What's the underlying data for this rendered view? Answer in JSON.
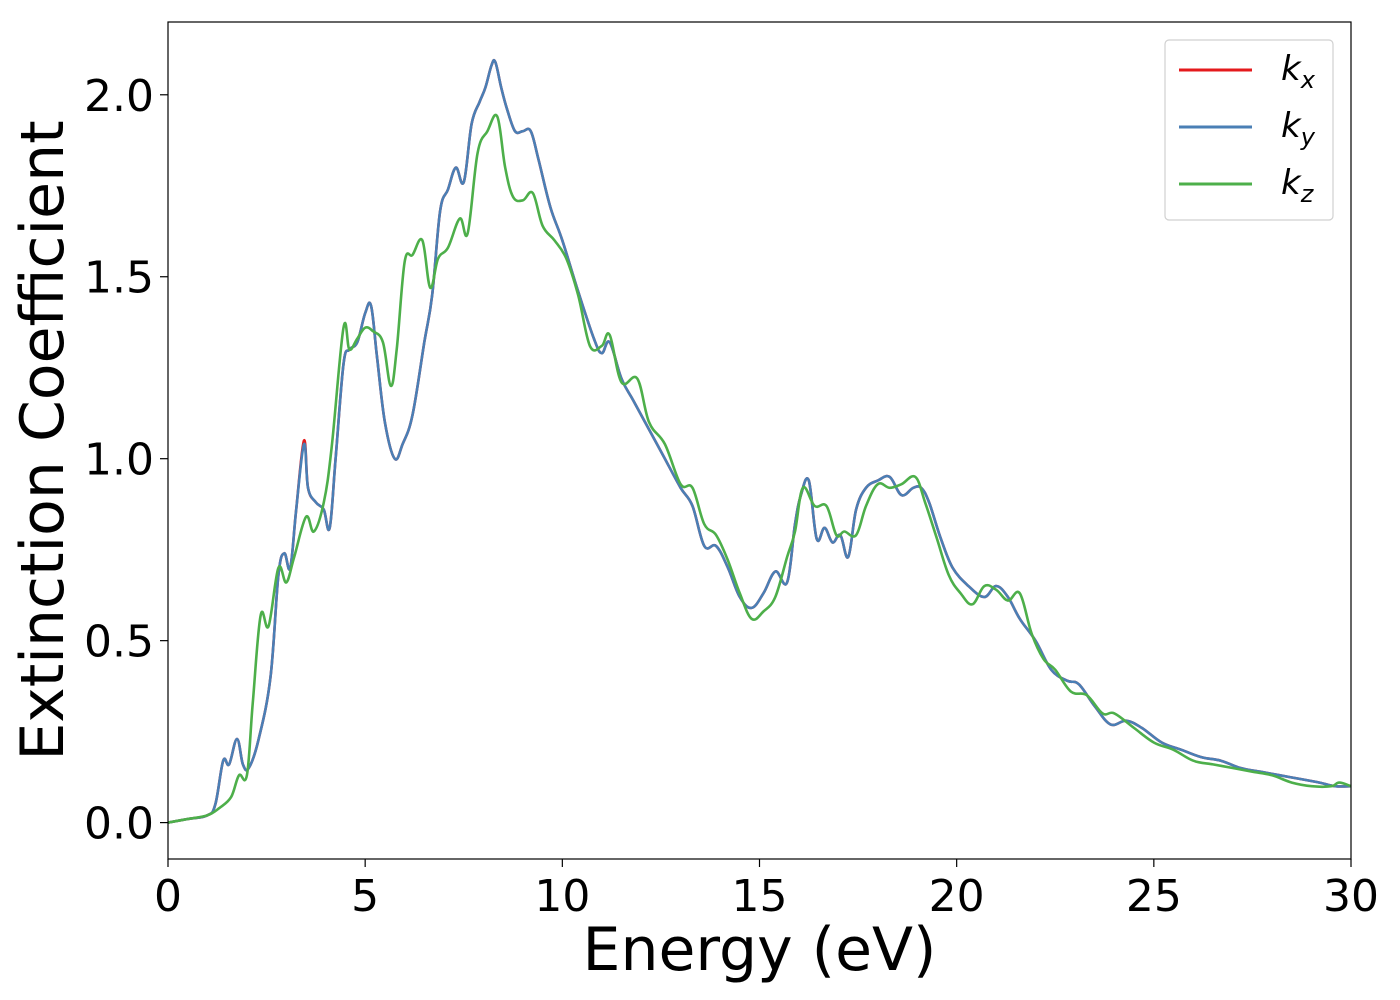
{
  "chart_data": {
    "type": "line",
    "xlabel": "Energy (eV)",
    "ylabel": "Extinction Coefficient",
    "xlim": [
      0,
      30
    ],
    "ylim": [
      -0.1,
      2.2
    ],
    "xticks": [
      "0",
      "5",
      "10",
      "15",
      "20",
      "25",
      "30"
    ],
    "xtick_values": [
      0,
      5,
      10,
      15,
      20,
      25,
      30
    ],
    "yticks": [
      "0.0",
      "0.5",
      "1.0",
      "1.5",
      "2.0"
    ],
    "ytick_values": [
      0.0,
      0.5,
      1.0,
      1.5,
      2.0
    ],
    "grid": false,
    "legend_position": "top-right",
    "series": [
      {
        "name": "k_x",
        "label_main": "k",
        "label_sub": "x",
        "color": "#e41a1c",
        "x": [
          0,
          0.5,
          1.0,
          1.2,
          1.4,
          1.55,
          1.75,
          1.9,
          2.05,
          2.3,
          2.6,
          2.8,
          2.95,
          3.1,
          3.25,
          3.45,
          3.55,
          3.75,
          3.95,
          4.1,
          4.25,
          4.45,
          4.6,
          4.8,
          5.0,
          5.15,
          5.3,
          5.5,
          5.75,
          5.95,
          6.2,
          6.5,
          6.7,
          6.9,
          7.1,
          7.3,
          7.5,
          7.7,
          7.9,
          8.05,
          8.2,
          8.3,
          8.45,
          8.6,
          8.8,
          9.0,
          9.2,
          9.4,
          9.7,
          10.0,
          10.4,
          10.8,
          11.0,
          11.2,
          11.5,
          11.8,
          12.2,
          12.6,
          13.0,
          13.3,
          13.6,
          13.9,
          14.2,
          14.5,
          14.8,
          15.1,
          15.4,
          15.7,
          15.9,
          16.05,
          16.25,
          16.45,
          16.65,
          16.85,
          17.05,
          17.25,
          17.45,
          17.7,
          18.0,
          18.3,
          18.6,
          18.9,
          19.1,
          19.3,
          19.6,
          19.9,
          20.3,
          20.7,
          21.0,
          21.3,
          21.6,
          22.0,
          22.4,
          22.8,
          23.1,
          23.5,
          23.9,
          24.3,
          24.7,
          25.2,
          25.7,
          26.2,
          26.7,
          27.2,
          27.7,
          28.2,
          28.7,
          29.2,
          29.6,
          30.0
        ],
        "y": [
          0.0,
          0.01,
          0.02,
          0.05,
          0.17,
          0.16,
          0.23,
          0.16,
          0.15,
          0.23,
          0.4,
          0.68,
          0.74,
          0.7,
          0.86,
          1.05,
          0.92,
          0.88,
          0.86,
          0.81,
          1.0,
          1.26,
          1.3,
          1.32,
          1.4,
          1.42,
          1.28,
          1.1,
          1.0,
          1.04,
          1.12,
          1.32,
          1.45,
          1.68,
          1.74,
          1.8,
          1.76,
          1.92,
          1.98,
          2.02,
          2.08,
          2.09,
          2.02,
          1.96,
          1.9,
          1.9,
          1.9,
          1.82,
          1.69,
          1.6,
          1.46,
          1.33,
          1.29,
          1.32,
          1.22,
          1.16,
          1.08,
          1.0,
          0.92,
          0.87,
          0.76,
          0.76,
          0.7,
          0.62,
          0.59,
          0.63,
          0.69,
          0.66,
          0.82,
          0.9,
          0.94,
          0.78,
          0.81,
          0.77,
          0.79,
          0.73,
          0.86,
          0.92,
          0.94,
          0.95,
          0.9,
          0.92,
          0.92,
          0.88,
          0.78,
          0.7,
          0.65,
          0.62,
          0.65,
          0.62,
          0.56,
          0.5,
          0.42,
          0.39,
          0.38,
          0.32,
          0.27,
          0.28,
          0.26,
          0.22,
          0.2,
          0.18,
          0.17,
          0.15,
          0.14,
          0.13,
          0.12,
          0.11,
          0.1,
          0.1
        ]
      },
      {
        "name": "k_y",
        "label_main": "k",
        "label_sub": "y",
        "color": "#4a7fb5",
        "x": [
          0,
          0.5,
          1.0,
          1.2,
          1.4,
          1.55,
          1.75,
          1.9,
          2.05,
          2.3,
          2.6,
          2.8,
          2.95,
          3.1,
          3.25,
          3.45,
          3.55,
          3.75,
          3.95,
          4.1,
          4.25,
          4.45,
          4.6,
          4.8,
          5.0,
          5.15,
          5.3,
          5.5,
          5.75,
          5.95,
          6.2,
          6.5,
          6.7,
          6.9,
          7.1,
          7.3,
          7.5,
          7.7,
          7.9,
          8.05,
          8.2,
          8.3,
          8.45,
          8.6,
          8.8,
          9.0,
          9.2,
          9.4,
          9.7,
          10.0,
          10.4,
          10.8,
          11.0,
          11.2,
          11.5,
          11.8,
          12.2,
          12.6,
          13.0,
          13.3,
          13.6,
          13.9,
          14.2,
          14.5,
          14.8,
          15.1,
          15.4,
          15.7,
          15.9,
          16.05,
          16.25,
          16.45,
          16.65,
          16.85,
          17.05,
          17.25,
          17.45,
          17.7,
          18.0,
          18.3,
          18.6,
          18.9,
          19.1,
          19.3,
          19.6,
          19.9,
          20.3,
          20.7,
          21.0,
          21.3,
          21.6,
          22.0,
          22.4,
          22.8,
          23.1,
          23.5,
          23.9,
          24.3,
          24.7,
          25.2,
          25.7,
          26.2,
          26.7,
          27.2,
          27.7,
          28.2,
          28.7,
          29.2,
          29.6,
          30.0
        ],
        "y": [
          0.0,
          0.01,
          0.02,
          0.05,
          0.17,
          0.16,
          0.23,
          0.16,
          0.15,
          0.23,
          0.4,
          0.68,
          0.74,
          0.7,
          0.86,
          1.04,
          0.92,
          0.88,
          0.86,
          0.81,
          1.0,
          1.26,
          1.3,
          1.32,
          1.4,
          1.42,
          1.28,
          1.1,
          1.0,
          1.04,
          1.12,
          1.32,
          1.45,
          1.68,
          1.74,
          1.8,
          1.76,
          1.92,
          1.98,
          2.02,
          2.08,
          2.09,
          2.02,
          1.96,
          1.9,
          1.9,
          1.9,
          1.82,
          1.69,
          1.6,
          1.46,
          1.33,
          1.29,
          1.32,
          1.22,
          1.16,
          1.08,
          1.0,
          0.92,
          0.87,
          0.76,
          0.76,
          0.7,
          0.62,
          0.59,
          0.63,
          0.69,
          0.66,
          0.82,
          0.9,
          0.94,
          0.78,
          0.81,
          0.77,
          0.79,
          0.73,
          0.86,
          0.92,
          0.94,
          0.95,
          0.9,
          0.92,
          0.92,
          0.88,
          0.78,
          0.7,
          0.65,
          0.62,
          0.65,
          0.62,
          0.56,
          0.5,
          0.42,
          0.39,
          0.38,
          0.32,
          0.27,
          0.28,
          0.26,
          0.22,
          0.2,
          0.18,
          0.17,
          0.15,
          0.14,
          0.13,
          0.12,
          0.11,
          0.1,
          0.1
        ]
      },
      {
        "name": "k_z",
        "label_main": "k",
        "label_sub": "z",
        "color": "#4daf4a",
        "x": [
          0,
          0.5,
          1.0,
          1.3,
          1.6,
          1.8,
          2.0,
          2.15,
          2.35,
          2.55,
          2.8,
          3.0,
          3.2,
          3.5,
          3.7,
          3.95,
          4.15,
          4.45,
          4.6,
          4.8,
          5.0,
          5.2,
          5.45,
          5.65,
          5.8,
          6.0,
          6.2,
          6.45,
          6.65,
          6.85,
          7.1,
          7.4,
          7.6,
          7.85,
          8.1,
          8.35,
          8.55,
          8.75,
          9.0,
          9.25,
          9.5,
          9.8,
          10.1,
          10.4,
          10.7,
          11.0,
          11.2,
          11.5,
          11.9,
          12.2,
          12.6,
          13.0,
          13.3,
          13.6,
          13.9,
          14.2,
          14.5,
          14.8,
          15.1,
          15.4,
          15.7,
          15.9,
          16.1,
          16.4,
          16.7,
          16.95,
          17.15,
          17.45,
          17.7,
          18.0,
          18.3,
          18.6,
          18.95,
          19.2,
          19.5,
          19.8,
          20.1,
          20.4,
          20.7,
          21.0,
          21.3,
          21.6,
          21.9,
          22.2,
          22.5,
          22.9,
          23.3,
          23.7,
          24.0,
          24.5,
          25.0,
          25.5,
          26.0,
          26.5,
          27.0,
          27.5,
          28.0,
          28.5,
          29.0,
          29.5,
          29.7,
          30.0
        ],
        "y": [
          0.0,
          0.01,
          0.02,
          0.04,
          0.07,
          0.13,
          0.13,
          0.33,
          0.57,
          0.54,
          0.7,
          0.66,
          0.73,
          0.84,
          0.8,
          0.88,
          1.03,
          1.36,
          1.3,
          1.33,
          1.36,
          1.35,
          1.32,
          1.2,
          1.3,
          1.54,
          1.56,
          1.6,
          1.47,
          1.55,
          1.58,
          1.66,
          1.62,
          1.84,
          1.9,
          1.94,
          1.8,
          1.72,
          1.71,
          1.73,
          1.64,
          1.6,
          1.55,
          1.45,
          1.31,
          1.31,
          1.34,
          1.21,
          1.22,
          1.1,
          1.04,
          0.93,
          0.92,
          0.82,
          0.79,
          0.72,
          0.63,
          0.56,
          0.58,
          0.62,
          0.73,
          0.8,
          0.92,
          0.87,
          0.87,
          0.79,
          0.8,
          0.79,
          0.87,
          0.93,
          0.92,
          0.93,
          0.95,
          0.88,
          0.78,
          0.68,
          0.63,
          0.6,
          0.65,
          0.64,
          0.61,
          0.63,
          0.52,
          0.45,
          0.42,
          0.36,
          0.35,
          0.3,
          0.3,
          0.26,
          0.22,
          0.2,
          0.17,
          0.16,
          0.15,
          0.14,
          0.13,
          0.11,
          0.1,
          0.1,
          0.11,
          0.1
        ]
      }
    ]
  }
}
